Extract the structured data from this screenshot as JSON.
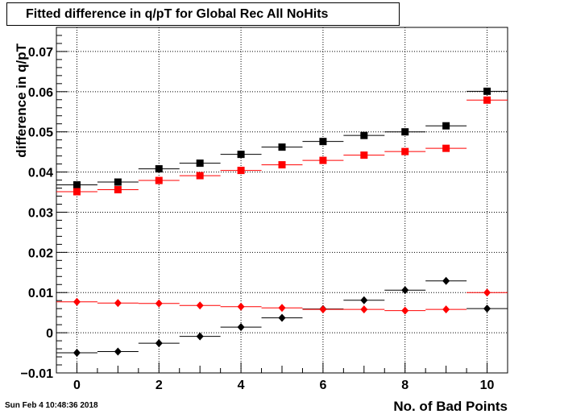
{
  "chart_data": {
    "type": "scatter",
    "title": "Fitted difference in q/pT  for Global Rec All NoHits",
    "xlabel": "No. of Bad Points",
    "ylabel": "difference in q/pT",
    "xlim": [
      -0.5,
      10.5
    ],
    "ylim": [
      -0.01,
      0.076
    ],
    "x_ticks": [
      "0",
      "2",
      "4",
      "6",
      "8",
      "10"
    ],
    "y_ticks": [
      "−0.01",
      "0",
      "0.01",
      "0.02",
      "0.03",
      "0.04",
      "0.05",
      "0.06",
      "0.07"
    ],
    "grid": true,
    "x": [
      0,
      1,
      2,
      3,
      4,
      5,
      6,
      7,
      8,
      9,
      10
    ],
    "series": [
      {
        "color": "#000000",
        "marker": "square",
        "values": [
          0.0368,
          0.0375,
          0.0408,
          0.0422,
          0.0444,
          0.0462,
          0.0476,
          0.0491,
          0.05,
          0.0515,
          0.0601
        ]
      },
      {
        "color": "#ff0000",
        "marker": "square",
        "values": [
          0.0351,
          0.0356,
          0.0379,
          0.0391,
          0.0404,
          0.0418,
          0.0429,
          0.0442,
          0.0451,
          0.0459,
          0.0579
        ]
      },
      {
        "color": "#000000",
        "marker": "diamond",
        "values": [
          -0.005,
          -0.0047,
          -0.0026,
          -0.0009,
          0.0014,
          0.0037,
          0.0059,
          0.0081,
          0.0106,
          0.0129,
          0.006
        ]
      },
      {
        "color": "#ff0000",
        "marker": "diamond",
        "values": [
          0.0077,
          0.0074,
          0.0073,
          0.0068,
          0.0065,
          0.0062,
          0.0058,
          0.0058,
          0.0055,
          0.0058,
          0.01
        ]
      }
    ]
  },
  "datestamp": "Sun Feb  4 10:48:36 2018"
}
